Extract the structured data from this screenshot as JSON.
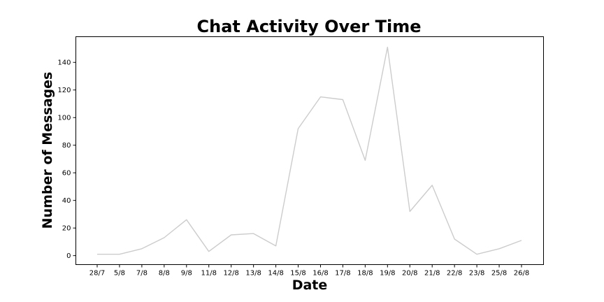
{
  "chart_data": {
    "type": "line",
    "title": "Chat Activity Over Time",
    "xlabel": "Date",
    "ylabel": "Number of Messages",
    "categories": [
      "28/7",
      "5/8",
      "7/8",
      "8/8",
      "9/8",
      "11/8",
      "12/8",
      "13/8",
      "14/8",
      "15/8",
      "16/8",
      "17/8",
      "18/8",
      "19/8",
      "20/8",
      "21/8",
      "22/8",
      "23/8",
      "25/8",
      "26/8"
    ],
    "series": [
      {
        "values": [
          1,
          1,
          5,
          13,
          26,
          3,
          15,
          16,
          7,
          92,
          115,
          113,
          69,
          151,
          32,
          51,
          12,
          1,
          5,
          11
        ]
      }
    ],
    "yticks": [
      0,
      20,
      40,
      60,
      80,
      100,
      120,
      140
    ],
    "ylim": [
      -6.5,
      158.6
    ],
    "grid": false,
    "line_color": "#cccccc"
  }
}
